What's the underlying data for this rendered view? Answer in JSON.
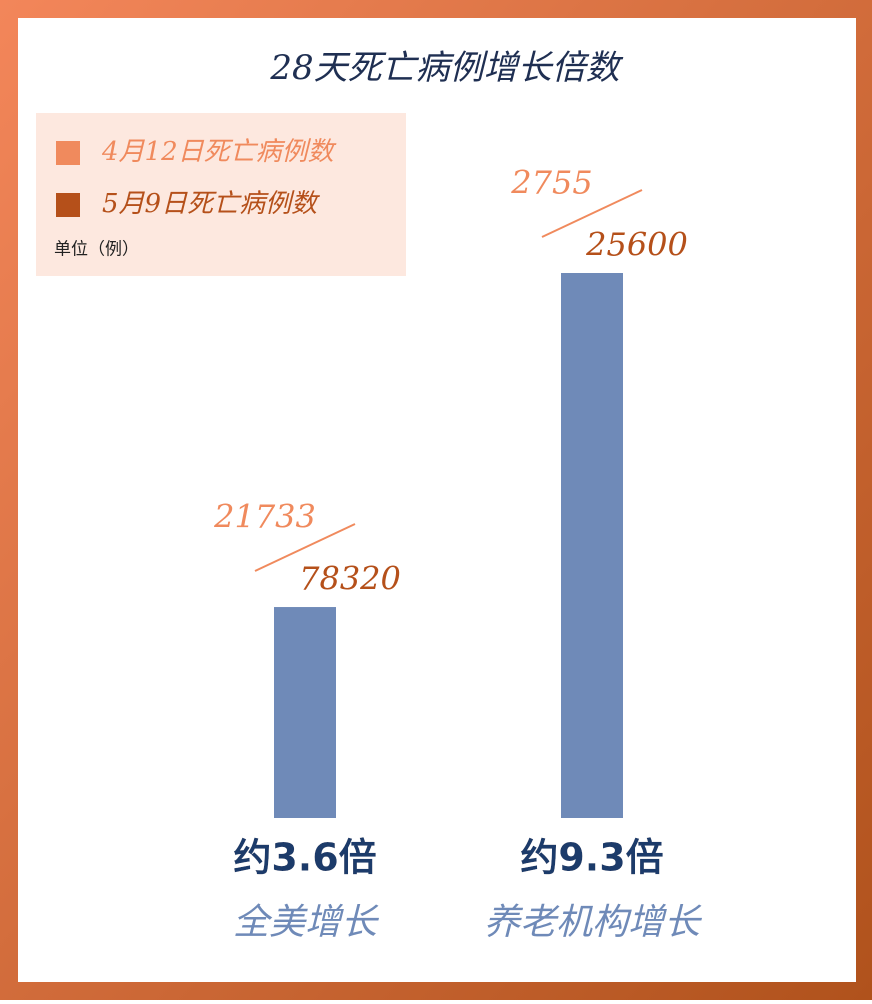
{
  "chart_data": {
    "type": "bar",
    "title": "28天死亡病例增长倍数",
    "unit": "单位（例）",
    "categories": [
      "全美增长",
      "养老机构增长"
    ],
    "values": [
      3.6,
      9.3
    ],
    "value_labels": [
      "约3.6倍",
      "约9.3倍"
    ],
    "color": "#6f8ab8",
    "series": [
      {
        "name": "4月12日死亡病例数",
        "color": "#f08a5d",
        "values": [
          21733,
          2755
        ]
      },
      {
        "name": "5月9日死亡病例数",
        "color": "#b5501a",
        "values": [
          78320,
          25600
        ]
      }
    ]
  }
}
